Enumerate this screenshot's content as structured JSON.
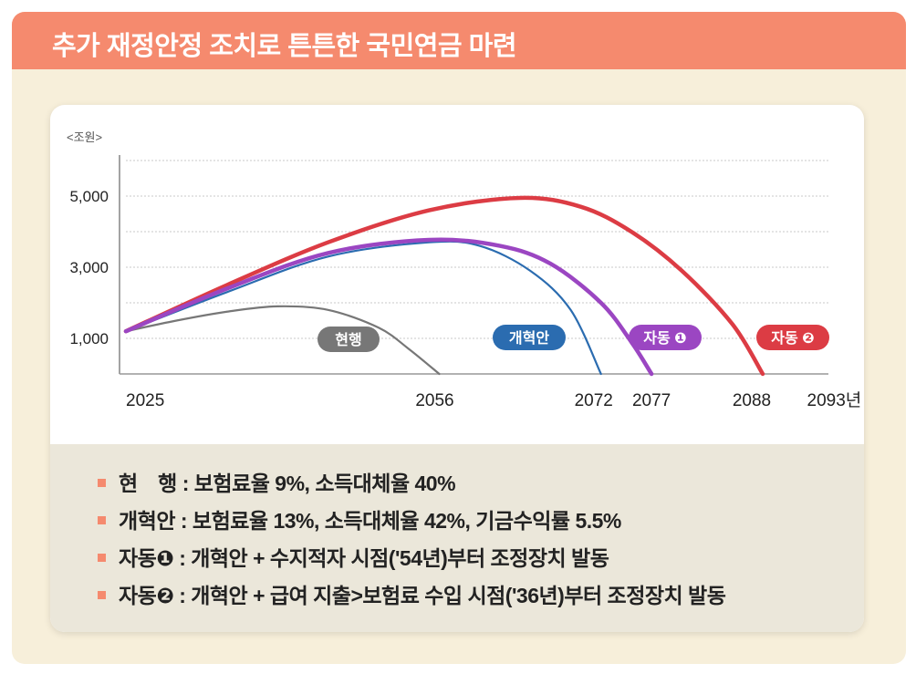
{
  "title": "추가 재정안정 조치로 튼튼한 국민연금 마련",
  "chart_data": {
    "type": "line",
    "unit_label": "<조원>",
    "ylim": [
      0,
      6000
    ],
    "yticks": [
      {
        "value": 1000,
        "label": "1,000"
      },
      {
        "value": 3000,
        "label": "3,000"
      },
      {
        "value": 5000,
        "label": "5,000"
      }
    ],
    "ygrid": [
      1000,
      2000,
      3000,
      4000,
      5000,
      6000
    ],
    "xlim": [
      2025,
      2094.5
    ],
    "xticks": [
      {
        "value": 2025,
        "label": "2025"
      },
      {
        "value": 2056,
        "label": "2056"
      },
      {
        "value": 2072,
        "label": "2072"
      },
      {
        "value": 2077,
        "label": "2077"
      },
      {
        "value": 2088,
        "label": "2088"
      },
      {
        "value": 2093,
        "label": "2093년"
      }
    ],
    "grid": true,
    "series": [
      {
        "name": "현행",
        "color": "#777777",
        "width": 2.2,
        "x": [
          2025,
          2030,
          2035,
          2040,
          2045,
          2050,
          2053,
          2056
        ],
        "y": [
          1200,
          1500,
          1750,
          1900,
          1800,
          1300,
          700,
          0
        ]
      },
      {
        "name": "개혁안",
        "color": "#2b6cb0",
        "width": 2.2,
        "x": [
          2025,
          2035,
          2045,
          2055,
          2060,
          2065,
          2069,
          2072
        ],
        "y": [
          1200,
          2300,
          3300,
          3700,
          3600,
          2900,
          1800,
          0
        ]
      },
      {
        "name": "자동 ❶",
        "color": "#9b46c2",
        "width": 4.5,
        "x": [
          2025,
          2035,
          2045,
          2055,
          2062,
          2067,
          2072,
          2075,
          2077
        ],
        "y": [
          1200,
          2400,
          3400,
          3770,
          3600,
          3100,
          2000,
          900,
          0
        ]
      },
      {
        "name": "자동 ❷",
        "color": "#dc3c44",
        "width": 4.5,
        "x": [
          2025,
          2035,
          2045,
          2055,
          2064,
          2070,
          2075,
          2080,
          2085,
          2088
        ],
        "y": [
          1200,
          2500,
          3700,
          4600,
          4950,
          4700,
          4000,
          2900,
          1400,
          0
        ]
      }
    ]
  },
  "notes": [
    {
      "label": "현　행",
      "text": ": 보험료율 9%, 소득대체율 40%"
    },
    {
      "label": "개혁안",
      "text": ": 보험료율 13%, 소득대체율 42%, 기금수익률 5.5%"
    },
    {
      "label": "자동❶",
      "text": ": 개혁안 + 수지적자 시점('54년)부터 조정장치 발동"
    },
    {
      "label": "자동❷",
      "text": ": 개혁안 + 급여 지출>보험료 수입 시점('36년)부터 조정장치 발동"
    }
  ]
}
